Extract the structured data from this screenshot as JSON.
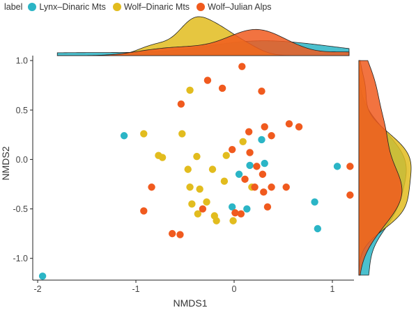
{
  "chart_data": {
    "type": "scatter",
    "legend": {
      "title": "label",
      "placement": "top",
      "entries": [
        {
          "name": "Lynx–Dinaric Mts",
          "color": "#2BB5C6"
        },
        {
          "name": "Wolf–Dinaric Mts",
          "color": "#E2BC1E"
        },
        {
          "name": "Wolf–Julian Alps",
          "color": "#F05A1E"
        }
      ]
    },
    "xlabel": "NMDS1",
    "ylabel": "NMDS2",
    "xlim": [
      -2.05,
      1.22
    ],
    "ylim": [
      -1.22,
      1.05
    ],
    "xticks": [
      -2,
      -1,
      0,
      1
    ],
    "xtick_labels": [
      "-2",
      "-1",
      "0",
      "1"
    ],
    "yticks": [
      -1.0,
      -0.5,
      0.0,
      0.5,
      1.0
    ],
    "ytick_labels": [
      "-1.0",
      "-0.5",
      "0.0",
      "0.5",
      "1.0"
    ],
    "grid": false,
    "marginal_density": {
      "top": true,
      "right": true
    },
    "series": [
      {
        "name": "Lynx–Dinaric Mts",
        "color": "#2BB5C6",
        "points": [
          {
            "x": -1.12,
            "y": 0.24
          },
          {
            "x": -1.95,
            "y": -1.18
          },
          {
            "x": 0.28,
            "y": 0.2
          },
          {
            "x": 0.05,
            "y": -0.15
          },
          {
            "x": 0.16,
            "y": -0.06
          },
          {
            "x": 0.31,
            "y": -0.04
          },
          {
            "x": 1.05,
            "y": -0.07
          },
          {
            "x": 0.82,
            "y": -0.43
          },
          {
            "x": 0.85,
            "y": -0.7
          },
          {
            "x": -0.02,
            "y": -0.48
          },
          {
            "x": 0.13,
            "y": -0.5
          }
        ]
      },
      {
        "name": "Wolf–Dinaric Mts",
        "color": "#E2BC1E",
        "points": [
          {
            "x": -0.45,
            "y": 0.7
          },
          {
            "x": -0.92,
            "y": 0.26
          },
          {
            "x": -0.53,
            "y": 0.26
          },
          {
            "x": -0.77,
            "y": 0.04
          },
          {
            "x": -0.73,
            "y": 0.02
          },
          {
            "x": -0.38,
            "y": 0.03
          },
          {
            "x": -0.47,
            "y": -0.1
          },
          {
            "x": -0.08,
            "y": 0.04
          },
          {
            "x": 0.09,
            "y": 0.18
          },
          {
            "x": -0.22,
            "y": -0.1
          },
          {
            "x": -0.1,
            "y": -0.22
          },
          {
            "x": -0.45,
            "y": -0.28
          },
          {
            "x": -0.35,
            "y": -0.3
          },
          {
            "x": 0.18,
            "y": -0.28
          },
          {
            "x": -0.43,
            "y": -0.45
          },
          {
            "x": -0.28,
            "y": -0.43
          },
          {
            "x": -0.37,
            "y": -0.55
          },
          {
            "x": -0.2,
            "y": -0.57
          },
          {
            "x": -0.18,
            "y": -0.62
          },
          {
            "x": -0.01,
            "y": -0.62
          }
        ]
      },
      {
        "name": "Wolf–Julian Alps",
        "color": "#F05A1E",
        "points": [
          {
            "x": 0.08,
            "y": 0.94
          },
          {
            "x": -0.27,
            "y": 0.8
          },
          {
            "x": -0.12,
            "y": 0.72
          },
          {
            "x": 0.28,
            "y": 0.69
          },
          {
            "x": -0.54,
            "y": 0.56
          },
          {
            "x": 0.56,
            "y": 0.36
          },
          {
            "x": 0.66,
            "y": 0.33
          },
          {
            "x": 0.31,
            "y": 0.33
          },
          {
            "x": 0.15,
            "y": 0.28
          },
          {
            "x": 0.38,
            "y": 0.24
          },
          {
            "x": -0.02,
            "y": 0.1
          },
          {
            "x": 0.16,
            "y": 0.07
          },
          {
            "x": 0.23,
            "y": -0.07
          },
          {
            "x": 1.18,
            "y": -0.07
          },
          {
            "x": 0.29,
            "y": -0.15
          },
          {
            "x": 0.11,
            "y": -0.2
          },
          {
            "x": -0.84,
            "y": -0.28
          },
          {
            "x": 0.21,
            "y": -0.28
          },
          {
            "x": 0.38,
            "y": -0.28
          },
          {
            "x": 0.53,
            "y": -0.28
          },
          {
            "x": 0.3,
            "y": -0.33
          },
          {
            "x": 1.18,
            "y": -0.36
          },
          {
            "x": 0.34,
            "y": -0.48
          },
          {
            "x": -0.92,
            "y": -0.52
          },
          {
            "x": -0.32,
            "y": -0.5
          },
          {
            "x": 0.01,
            "y": -0.54
          },
          {
            "x": 0.07,
            "y": -0.55
          },
          {
            "x": -0.63,
            "y": -0.75
          },
          {
            "x": -0.55,
            "y": -0.76
          }
        ]
      }
    ]
  }
}
